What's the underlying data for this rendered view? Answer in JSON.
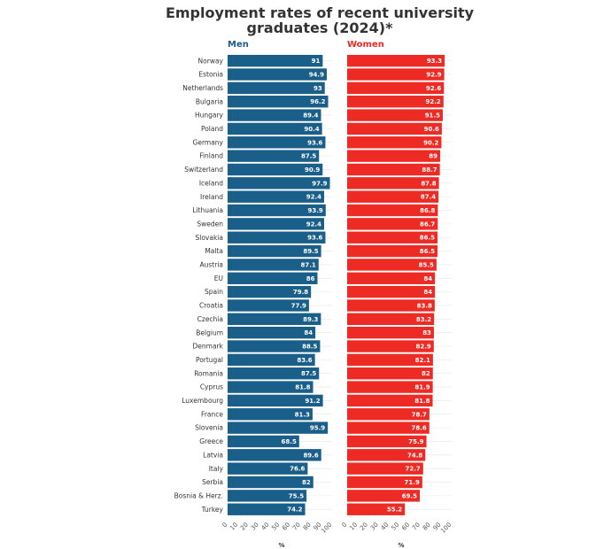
{
  "chart_data": {
    "type": "bar",
    "orientation": "horizontal",
    "title_lines": [
      "Employment rates of recent university",
      "graduates (2024)*"
    ],
    "unit": "%",
    "xlim": [
      0,
      100
    ],
    "xticks": [
      "0",
      "10",
      "20",
      "30",
      "40",
      "50",
      "60",
      "70",
      "80",
      "90",
      "100"
    ],
    "categories": [
      "Norway",
      "Estonia",
      "Netherlands",
      "Bulgaria",
      "Hungary",
      "Poland",
      "Germany",
      "Finland",
      "Switzerland",
      "Iceland",
      "Ireland",
      "Lithuania",
      "Sweden",
      "Slovakia",
      "Malta",
      "Austria",
      "EU",
      "Spain",
      "Croatia",
      "Czechia",
      "Belgium",
      "Denmark",
      "Portugal",
      "Romania",
      "Cyprus",
      "Luxembourg",
      "France",
      "Slovenia",
      "Greece",
      "Latvia",
      "Italy",
      "Serbia",
      "Bosnia & Herz.",
      "Turkey"
    ],
    "series": [
      {
        "name": "Men",
        "color": "#1a5e8a",
        "values": [
          91,
          94.9,
          93,
          96.2,
          89.4,
          90.4,
          93.6,
          87.5,
          90.9,
          97.9,
          92.4,
          93.9,
          92.4,
          93.6,
          89.5,
          87.1,
          86,
          79.8,
          77.9,
          89.3,
          84,
          88.5,
          83.6,
          87.5,
          81.8,
          91.2,
          81.3,
          95.9,
          68.5,
          89.6,
          76.6,
          82,
          75.5,
          74.2
        ],
        "labels": [
          "91",
          "94.9",
          "93",
          "96.2",
          "89.4",
          "90.4",
          "93.6",
          "87.5",
          "90.9",
          "97.9",
          "92.4",
          "93.9",
          "92.4",
          "93.6",
          "89.5",
          "87.1",
          "86",
          "79.8",
          "77.9",
          "89.3",
          "84",
          "88.5",
          "83.6",
          "87.5",
          "81.8",
          "91.2",
          "81.3",
          "95.9",
          "68.5",
          "89.6",
          "76.6",
          "82",
          "75.5",
          "74.2"
        ]
      },
      {
        "name": "Women",
        "color": "#ee2a24",
        "values": [
          93.3,
          92.9,
          92.6,
          92.2,
          91.5,
          90.6,
          90.2,
          89,
          88.7,
          87.8,
          87.4,
          86.8,
          86.7,
          86.5,
          86.5,
          85.5,
          84,
          84,
          83.8,
          83.2,
          83,
          82.9,
          82.1,
          82,
          81.9,
          81.8,
          78.7,
          78.6,
          75.9,
          74.8,
          72.7,
          71.9,
          69.5,
          55.2
        ],
        "labels": [
          "93.3",
          "92.9",
          "92.6",
          "92.2",
          "91.5",
          "90.6",
          "90.2",
          "89",
          "88.7",
          "87.8",
          "87.4",
          "86.8",
          "86.7",
          "86.5",
          "86.5",
          "85.5",
          "84",
          "84",
          "83.8",
          "83.2",
          "83",
          "82.9",
          "82.1",
          "82",
          "81.9",
          "81.8",
          "78.7",
          "78.6",
          "75.9",
          "74.8",
          "72.7",
          "71.9",
          "69.5",
          "55.2"
        ]
      }
    ]
  }
}
